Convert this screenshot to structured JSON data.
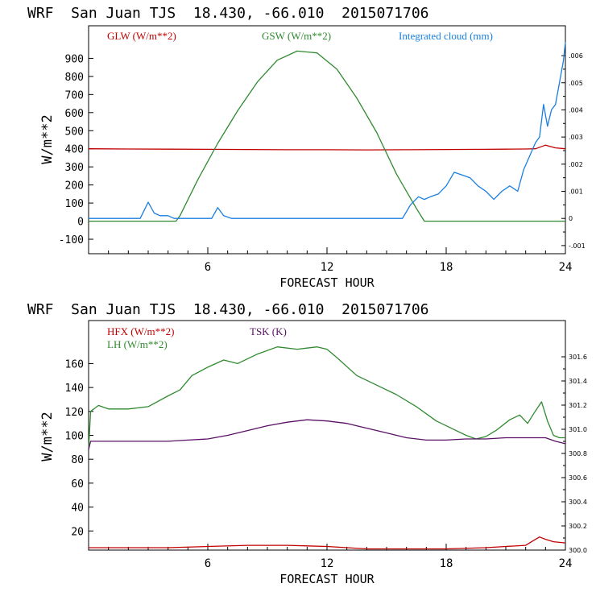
{
  "chart_data": [
    {
      "type": "line",
      "title": "WRF  San Juan TJS  18.430, -66.010  2015071706",
      "xlabel": "FORECAST HOUR",
      "ylabel": "W/m**2",
      "xlim": [
        0,
        24
      ],
      "ylim": [
        -180,
        1080
      ],
      "xticks": [
        "6",
        "12",
        "18",
        "24"
      ],
      "xtick_values": [
        6,
        12,
        18,
        24
      ],
      "yticks": [
        "-100",
        "0",
        "100",
        "200",
        "300",
        "400",
        "500",
        "600",
        "700",
        "800",
        "900"
      ],
      "ytick_values": [
        -100,
        0,
        100,
        200,
        300,
        400,
        500,
        600,
        700,
        800,
        900
      ],
      "y2lim": [
        -0.0013,
        0.0071
      ],
      "y2ticks": [
        "-.001",
        "0",
        ".001",
        ".002",
        ".003",
        ".004",
        ".005",
        ".006"
      ],
      "y2tick_values": [
        -0.001,
        0,
        0.001,
        0.002,
        0.003,
        0.004,
        0.005,
        0.006
      ],
      "series": [
        {
          "name": "GLW (W/m**2)",
          "color": "#c00000",
          "axis": "left",
          "x": [
            0,
            2,
            4,
            6,
            8,
            10,
            12,
            14,
            16,
            18,
            20,
            21,
            22,
            22.5,
            23,
            23.5,
            24
          ],
          "y": [
            400,
            399,
            398,
            397,
            396,
            395,
            395,
            394,
            395,
            396,
            397,
            398,
            399,
            400,
            420,
            405,
            400
          ]
        },
        {
          "name": "GSW (W/m**2)",
          "color": "#2f8a2f",
          "axis": "left",
          "x": [
            0,
            4.4,
            4.6,
            5.5,
            6.5,
            7.5,
            8.5,
            9.5,
            10.5,
            11.5,
            12.5,
            13.5,
            14.5,
            15.5,
            16.5,
            16.9,
            17.2,
            24
          ],
          "y": [
            0,
            0,
            30,
            230,
            430,
            610,
            770,
            890,
            940,
            930,
            840,
            680,
            490,
            260,
            70,
            0,
            0,
            0
          ]
        },
        {
          "name": "Integrated cloud (mm)",
          "color": "#1a7fe0",
          "axis": "right",
          "x": [
            0,
            2.6,
            3.0,
            3.3,
            3.6,
            4.0,
            4.3,
            4.6,
            6.2,
            6.5,
            6.8,
            7.2,
            15.8,
            16.2,
            16.6,
            16.9,
            17.2,
            17.6,
            18.0,
            18.4,
            18.8,
            19.2,
            19.6,
            20.0,
            20.4,
            20.8,
            21.2,
            21.6,
            21.9,
            22.2,
            22.5,
            22.7,
            22.9,
            23.1,
            23.3,
            23.5,
            23.7,
            23.9,
            24.0
          ],
          "y": [
            0,
            0,
            0.0006,
            0.0002,
            0.0001,
            0.0001,
            0,
            0,
            0,
            0.0004,
            0.0001,
            0,
            0,
            0.0005,
            0.0008,
            0.0007,
            0.0008,
            0.0009,
            0.0012,
            0.0017,
            0.0016,
            0.0015,
            0.0012,
            0.001,
            0.0007,
            0.001,
            0.0012,
            0.001,
            0.0018,
            0.0023,
            0.0028,
            0.003,
            0.0042,
            0.0034,
            0.004,
            0.0042,
            0.005,
            0.0058,
            0.0065
          ]
        }
      ]
    },
    {
      "type": "line",
      "title": "WRF  San Juan TJS  18.430, -66.010  2015071706",
      "xlabel": "FORECAST HOUR",
      "ylabel": "W/m**2",
      "xlim": [
        0,
        24
      ],
      "ylim": [
        4,
        196
      ],
      "xticks": [
        "6",
        "12",
        "18",
        "24"
      ],
      "xtick_values": [
        6,
        12,
        18,
        24
      ],
      "yticks": [
        "20",
        "40",
        "60",
        "80",
        "100",
        "120",
        "140",
        "160"
      ],
      "ytick_values": [
        20,
        40,
        60,
        80,
        100,
        120,
        140,
        160
      ],
      "y2lim": [
        300,
        301.9
      ],
      "y2ticks": [
        "300.0",
        "300.2",
        "300.4",
        "300.6",
        "300.8",
        "301.0",
        "301.2",
        "301.4",
        "301.6"
      ],
      "y2tick_values": [
        300.0,
        300.2,
        300.4,
        300.6,
        300.8,
        301.0,
        301.2,
        301.4,
        301.6
      ],
      "series": [
        {
          "name": "HFX (W/m**2)",
          "color": "#c00000",
          "axis": "left",
          "x": [
            0,
            2,
            4,
            6,
            8,
            10,
            12,
            14,
            16,
            18,
            20,
            21,
            22,
            22.4,
            22.7,
            23.0,
            23.4,
            24
          ],
          "y": [
            6,
            6,
            6,
            7,
            8,
            8,
            7,
            5,
            5,
            5,
            6,
            7,
            8,
            12,
            15,
            13,
            11,
            10
          ]
        },
        {
          "name": "LH (W/m**2)",
          "color": "#2f8a2f",
          "axis": "left",
          "x": [
            0,
            0.1,
            0.5,
            1.0,
            2.0,
            3.0,
            4.0,
            4.6,
            5.2,
            6.0,
            6.8,
            7.5,
            8.5,
            9.5,
            10.5,
            11.5,
            12.0,
            12.5,
            13.5,
            14.5,
            15.5,
            16.5,
            17.5,
            18.5,
            19.0,
            19.5,
            20.0,
            20.5,
            21.2,
            21.7,
            22.1,
            22.4,
            22.8,
            23.1,
            23.4,
            23.7,
            24.0
          ],
          "y": [
            88,
            120,
            125,
            122,
            122,
            124,
            133,
            138,
            150,
            157,
            163,
            160,
            168,
            174,
            172,
            174,
            172,
            165,
            150,
            142,
            134,
            124,
            112,
            104,
            100,
            97,
            99,
            104,
            113,
            117,
            110,
            118,
            128,
            112,
            100,
            98,
            98
          ]
        },
        {
          "name": "TSK (K)",
          "color": "#5a1066",
          "axis": "left",
          "x": [
            0,
            0.1,
            1,
            2,
            3,
            4,
            5,
            6,
            7,
            8,
            9,
            10,
            11,
            12,
            13,
            14,
            15,
            16,
            17,
            18,
            19,
            20,
            21,
            22,
            23,
            23.5,
            24
          ],
          "y": [
            88,
            95,
            95,
            95,
            95,
            95,
            96,
            97,
            100,
            104,
            108,
            111,
            113,
            112,
            110,
            106,
            102,
            98,
            96,
            96,
            97,
            97,
            98,
            98,
            98,
            95,
            93
          ]
        }
      ]
    }
  ]
}
